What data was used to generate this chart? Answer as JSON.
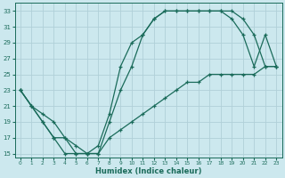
{
  "title": "",
  "xlabel": "Humidex (Indice chaleur)",
  "bg_color": "#cce8ee",
  "grid_color": "#b0d0d8",
  "line_color": "#1a6b5a",
  "xlim": [
    -0.5,
    23.5
  ],
  "ylim": [
    14.5,
    34
  ],
  "xticks": [
    0,
    1,
    2,
    3,
    4,
    5,
    6,
    7,
    8,
    9,
    10,
    11,
    12,
    13,
    14,
    15,
    16,
    17,
    18,
    19,
    20,
    21,
    22,
    23
  ],
  "yticks": [
    15,
    17,
    19,
    21,
    23,
    25,
    27,
    29,
    31,
    33
  ],
  "curve1_x": [
    0,
    1,
    2,
    3,
    4,
    5,
    6,
    7,
    8,
    9,
    10,
    11,
    12,
    13,
    14,
    15,
    16,
    17,
    18,
    19,
    20,
    21,
    22,
    23
  ],
  "curve1_y": [
    23,
    21,
    19,
    17,
    17,
    15,
    15,
    16,
    20,
    26,
    29,
    30,
    32,
    33,
    33,
    33,
    33,
    33,
    33,
    33,
    32,
    30,
    26,
    26
  ],
  "curve2_x": [
    0,
    1,
    2,
    3,
    4,
    5,
    6,
    7,
    8,
    9,
    10,
    11,
    12,
    13,
    14,
    15,
    16,
    17,
    18,
    19,
    20,
    21,
    22,
    23
  ],
  "curve2_y": [
    23,
    21,
    19,
    17,
    15,
    15,
    15,
    15,
    19,
    23,
    26,
    30,
    32,
    33,
    33,
    33,
    33,
    33,
    33,
    32,
    30,
    26,
    30,
    26
  ],
  "curve3_x": [
    0,
    1,
    2,
    3,
    4,
    5,
    6,
    7,
    8,
    9,
    10,
    11,
    12,
    13,
    14,
    15,
    16,
    17,
    18,
    19,
    20,
    21,
    22,
    23
  ],
  "curve3_y": [
    23,
    21,
    20,
    19,
    17,
    16,
    15,
    15,
    17,
    18,
    19,
    20,
    21,
    22,
    23,
    24,
    24,
    25,
    25,
    25,
    25,
    25,
    26,
    26
  ]
}
